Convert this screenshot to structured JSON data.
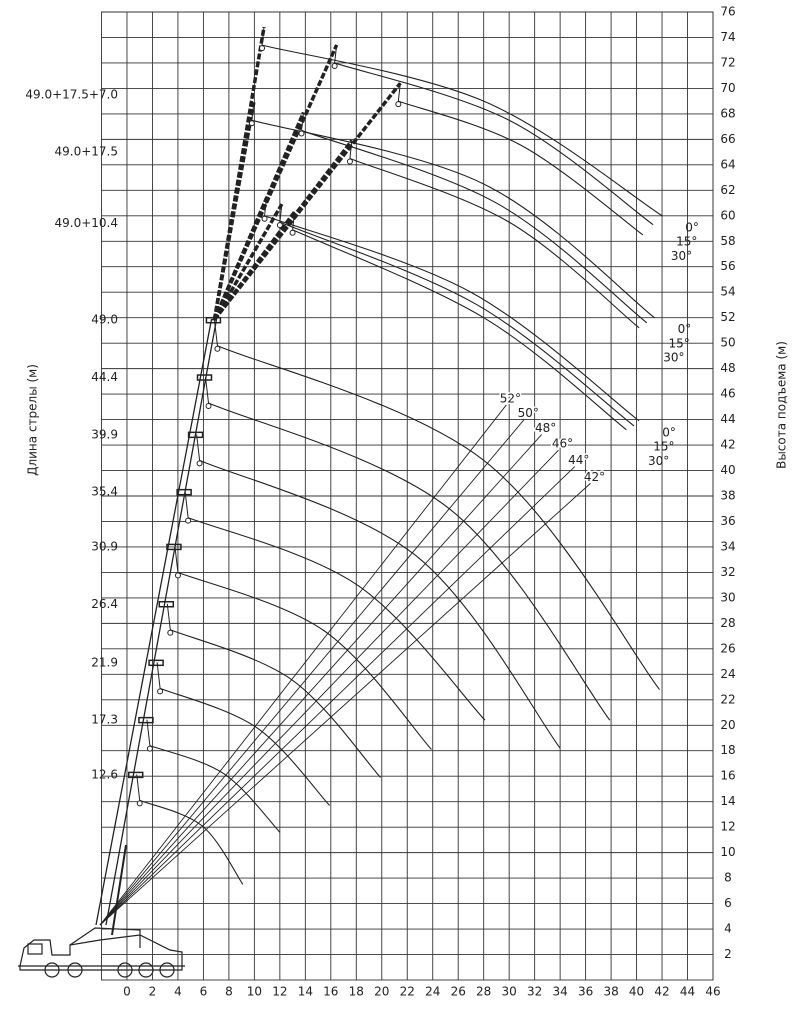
{
  "chart_data": {
    "type": "crane-range",
    "boom_label": "Длина стрелы (м)",
    "ylabel": "Высота подъема (м)",
    "xlim": [
      -2,
      46
    ],
    "ylim": [
      0,
      76
    ],
    "xticks": [
      0,
      2,
      4,
      6,
      8,
      10,
      12,
      14,
      16,
      18,
      20,
      22,
      24,
      26,
      28,
      30,
      32,
      34,
      36,
      38,
      40,
      42,
      44,
      46
    ],
    "yticks": [
      2,
      4,
      6,
      8,
      10,
      12,
      14,
      16,
      18,
      20,
      22,
      24,
      26,
      28,
      30,
      32,
      34,
      36,
      38,
      40,
      42,
      44,
      46,
      48,
      50,
      52,
      54,
      56,
      58,
      60,
      62,
      64,
      66,
      68,
      70,
      72,
      74,
      76
    ],
    "grid": true,
    "color": "#222222",
    "series": [
      {
        "name": "12.6",
        "x": [
          1,
          5.9,
          9.1
        ],
        "y": [
          14.1,
          12.1,
          7.5
        ]
      },
      {
        "name": "17.3",
        "x": [
          1.8,
          7.6,
          12
        ],
        "y": [
          18.4,
          16.2,
          11.6
        ]
      },
      {
        "name": "21.9",
        "x": [
          2.6,
          10.2,
          15.9
        ],
        "y": [
          22.9,
          19.8,
          13.7
        ]
      },
      {
        "name": "26.4",
        "x": [
          3.4,
          12.9,
          19.9
        ],
        "y": [
          27.5,
          23.6,
          15.9
        ]
      },
      {
        "name": "30.9",
        "x": [
          4,
          15.5,
          23.9
        ],
        "y": [
          32,
          27.4,
          18.1
        ]
      },
      {
        "name": "35.4",
        "x": [
          4.8,
          18.1,
          28.1
        ],
        "y": [
          36.3,
          31,
          20.4
        ]
      },
      {
        "name": "39.9",
        "x": [
          5.7,
          22.7,
          34
        ],
        "y": [
          40.8,
          33.3,
          18.2
        ]
      },
      {
        "name": "44.4",
        "x": [
          6.4,
          25.3,
          37.9
        ],
        "y": [
          45.3,
          37,
          20.4
        ]
      },
      {
        "name": "49.0",
        "x": [
          7.1,
          28,
          41.8
        ],
        "y": [
          49.8,
          40.8,
          22.8
        ]
      }
    ],
    "jib_offsets": [
      {
        "value": 0,
        "label": "0°"
      },
      {
        "value": 15,
        "label": "15°"
      },
      {
        "value": 30,
        "label": "30°"
      }
    ],
    "jibs": [
      {
        "name": "49.0+10.4",
        "curves": [
          {
            "x": [
              10.8,
              27,
              40.2
            ],
            "y": [
              60,
              54,
              43.9
            ]
          },
          {
            "x": [
              12,
              27.5,
              39.8
            ],
            "y": [
              59.5,
              53,
              43.5
            ]
          },
          {
            "x": [
              13,
              28,
              39.2
            ],
            "y": [
              58.9,
              52,
              43.2
            ]
          }
        ]
      },
      {
        "name": "49.0+17.5",
        "curves": [
          {
            "x": [
              9.8,
              28,
              41.4
            ],
            "y": [
              67.5,
              62.5,
              52
            ]
          },
          {
            "x": [
              13.7,
              29,
              40.8
            ],
            "y": [
              66.7,
              61,
              51.6
            ]
          },
          {
            "x": [
              17.5,
              30,
              40.2
            ],
            "y": [
              64.5,
              59.5,
              51.2
            ]
          }
        ]
      },
      {
        "name": "49.0+17.5+7.0",
        "curves": [
          {
            "x": [
              10.6,
              28,
              42
            ],
            "y": [
              73.4,
              69,
              60
            ]
          },
          {
            "x": [
              16.3,
              30,
              41.3
            ],
            "y": [
              72,
              67.5,
              59.3
            ]
          },
          {
            "x": [
              21.3,
              31,
              40.5
            ],
            "y": [
              69,
              65.5,
              58.5
            ]
          }
        ]
      }
    ],
    "boom_angles": [
      {
        "value": 52,
        "label": "52°"
      },
      {
        "value": 50,
        "label": "50°"
      },
      {
        "value": 48,
        "label": "48°"
      },
      {
        "value": 46,
        "label": "46°"
      },
      {
        "value": 44,
        "label": "44°"
      },
      {
        "value": 42,
        "label": "42°"
      }
    ]
  }
}
